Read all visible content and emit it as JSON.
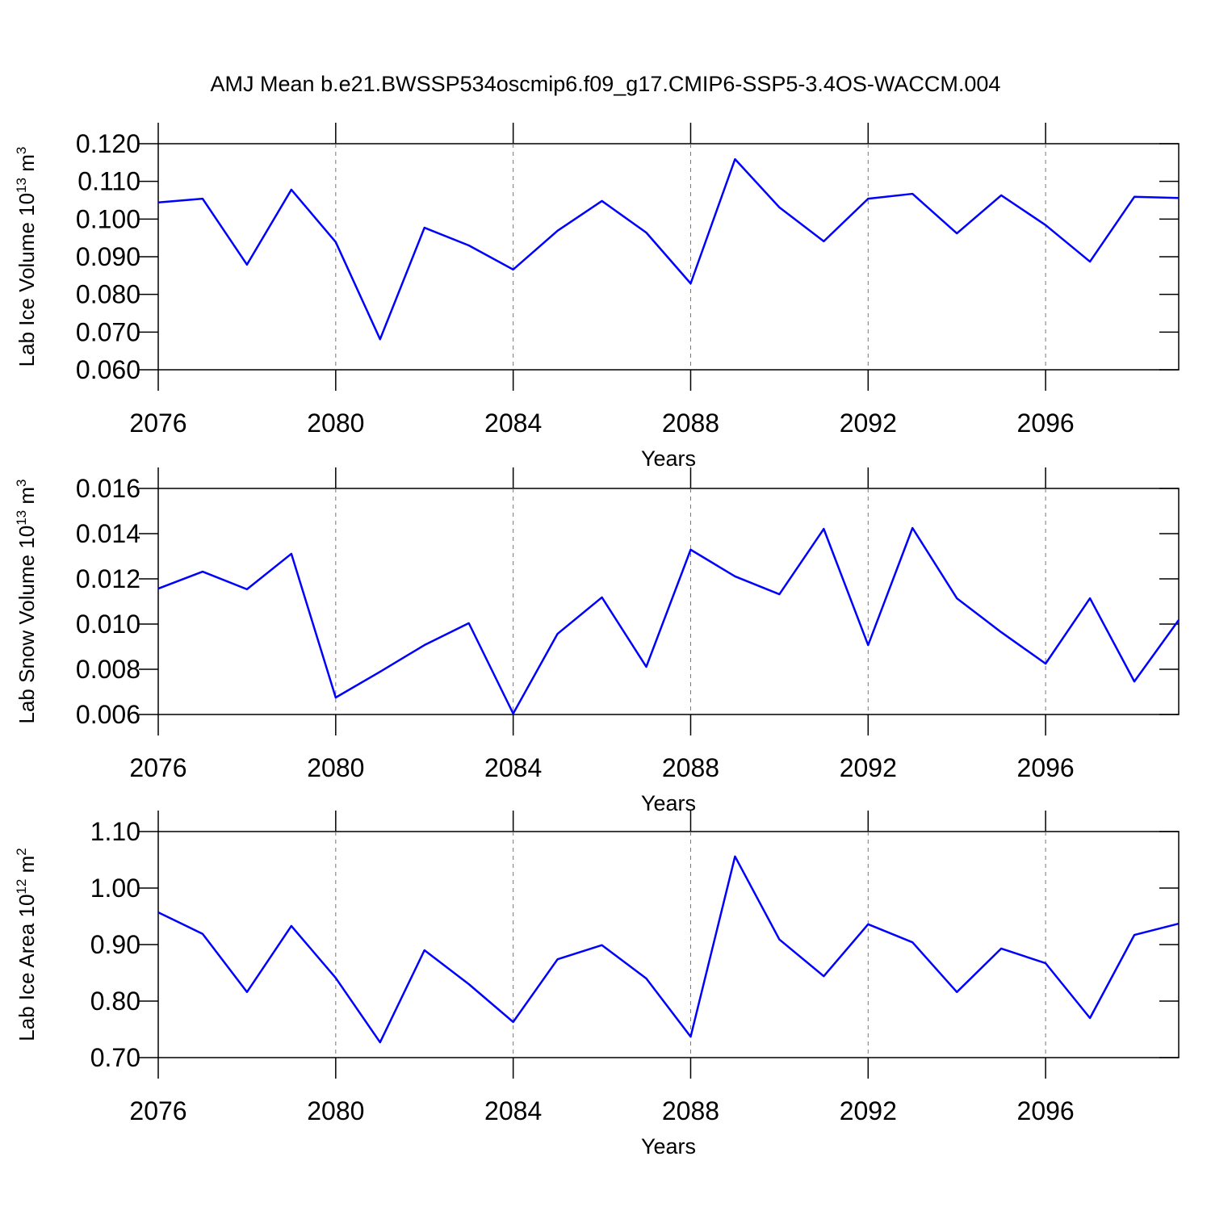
{
  "title": "AMJ Mean b.e21.BWSSP534oscmip6.f09_g17.CMIP6-SSP5-3.4OS-WACCM.004",
  "chart_data": [
    {
      "type": "line",
      "xlabel": "Years",
      "ylabel": {
        "text": "Lab Ice Volume 10",
        "exponent": "13",
        "unit": " m",
        "unit_exponent": "3"
      },
      "x": [
        2076,
        2077,
        2078,
        2079,
        2080,
        2081,
        2082,
        2083,
        2084,
        2085,
        2086,
        2087,
        2088,
        2089,
        2090,
        2091,
        2092,
        2093,
        2094,
        2095,
        2096,
        2097,
        2098,
        2099
      ],
      "values": [
        0.1044,
        0.1054,
        0.0879,
        0.1078,
        0.0939,
        0.0681,
        0.0977,
        0.093,
        0.0866,
        0.0969,
        0.1048,
        0.0964,
        0.0829,
        0.1159,
        0.1031,
        0.0941,
        0.1054,
        0.1067,
        0.0962,
        0.1063,
        0.0984,
        0.0887,
        0.1059,
        0.1056
      ],
      "color": "#0000ff",
      "xlim": [
        2076,
        2099
      ],
      "xticks": [
        2076,
        2080,
        2084,
        2088,
        2092,
        2096
      ],
      "ylim": [
        0.06,
        0.12
      ],
      "yticks": [
        {
          "value": 0.06,
          "label": "0.060"
        },
        {
          "value": 0.07,
          "label": "0.070"
        },
        {
          "value": 0.08,
          "label": "0.080"
        },
        {
          "value": 0.09,
          "label": "0.090"
        },
        {
          "value": 0.1,
          "label": "0.100"
        },
        {
          "value": 0.11,
          "label": "0.110"
        },
        {
          "value": 0.12,
          "label": "0.120"
        }
      ],
      "grid": "x"
    },
    {
      "type": "line",
      "xlabel": "Years",
      "ylabel": {
        "text": "Lab Snow Volume 10",
        "exponent": "13",
        "unit": " m",
        "unit_exponent": "3"
      },
      "x": [
        2076,
        2077,
        2078,
        2079,
        2080,
        2081,
        2082,
        2083,
        2084,
        2085,
        2086,
        2087,
        2088,
        2089,
        2090,
        2091,
        2092,
        2093,
        2094,
        2095,
        2096,
        2097,
        2098,
        2099
      ],
      "values": [
        0.01157,
        0.01232,
        0.01154,
        0.01311,
        0.00675,
        0.00789,
        0.00907,
        0.01004,
        0.00604,
        0.00957,
        0.01118,
        0.00811,
        0.01329,
        0.01211,
        0.01132,
        0.01421,
        0.00907,
        0.01425,
        0.01114,
        0.00964,
        0.00825,
        0.01114,
        0.00746,
        0.01018
      ],
      "color": "#0000ff",
      "xlim": [
        2076,
        2099
      ],
      "xticks": [
        2076,
        2080,
        2084,
        2088,
        2092,
        2096
      ],
      "ylim": [
        0.006,
        0.016
      ],
      "yticks": [
        0.006,
        {
          "value": 0.008,
          "label": "0.008"
        },
        {
          "value": 0.01,
          "label": "0.010"
        },
        0.012,
        0.014,
        0.016
      ],
      "grid": "x"
    },
    {
      "type": "line",
      "xlabel": "Years",
      "ylabel": {
        "text": "Lab Ice Area 10",
        "exponent": "12",
        "unit": " m",
        "unit_exponent": "2"
      },
      "x": [
        2076,
        2077,
        2078,
        2079,
        2080,
        2081,
        2082,
        2083,
        2084,
        2085,
        2086,
        2087,
        2088,
        2089,
        2090,
        2091,
        2092,
        2093,
        2094,
        2095,
        2096,
        2097,
        2098,
        2099
      ],
      "values": [
        0.957,
        0.919,
        0.816,
        0.933,
        0.841,
        0.727,
        0.89,
        0.83,
        0.763,
        0.874,
        0.899,
        0.84,
        0.737,
        1.056,
        0.909,
        0.844,
        0.936,
        0.904,
        0.816,
        0.893,
        0.867,
        0.77,
        0.917,
        0.937
      ],
      "color": "#0000ff",
      "xlim": [
        2076,
        2099
      ],
      "xticks": [
        2076,
        2080,
        2084,
        2088,
        2092,
        2096
      ],
      "ylim": [
        0.7,
        1.1
      ],
      "yticks": [
        {
          "value": 0.7,
          "label": "0.70"
        },
        {
          "value": 0.8,
          "label": "0.80"
        },
        {
          "value": 0.9,
          "label": "0.90"
        },
        {
          "value": 1.0,
          "label": "1.00"
        },
        {
          "value": 1.1,
          "label": "1.10"
        }
      ],
      "grid": "x"
    }
  ]
}
